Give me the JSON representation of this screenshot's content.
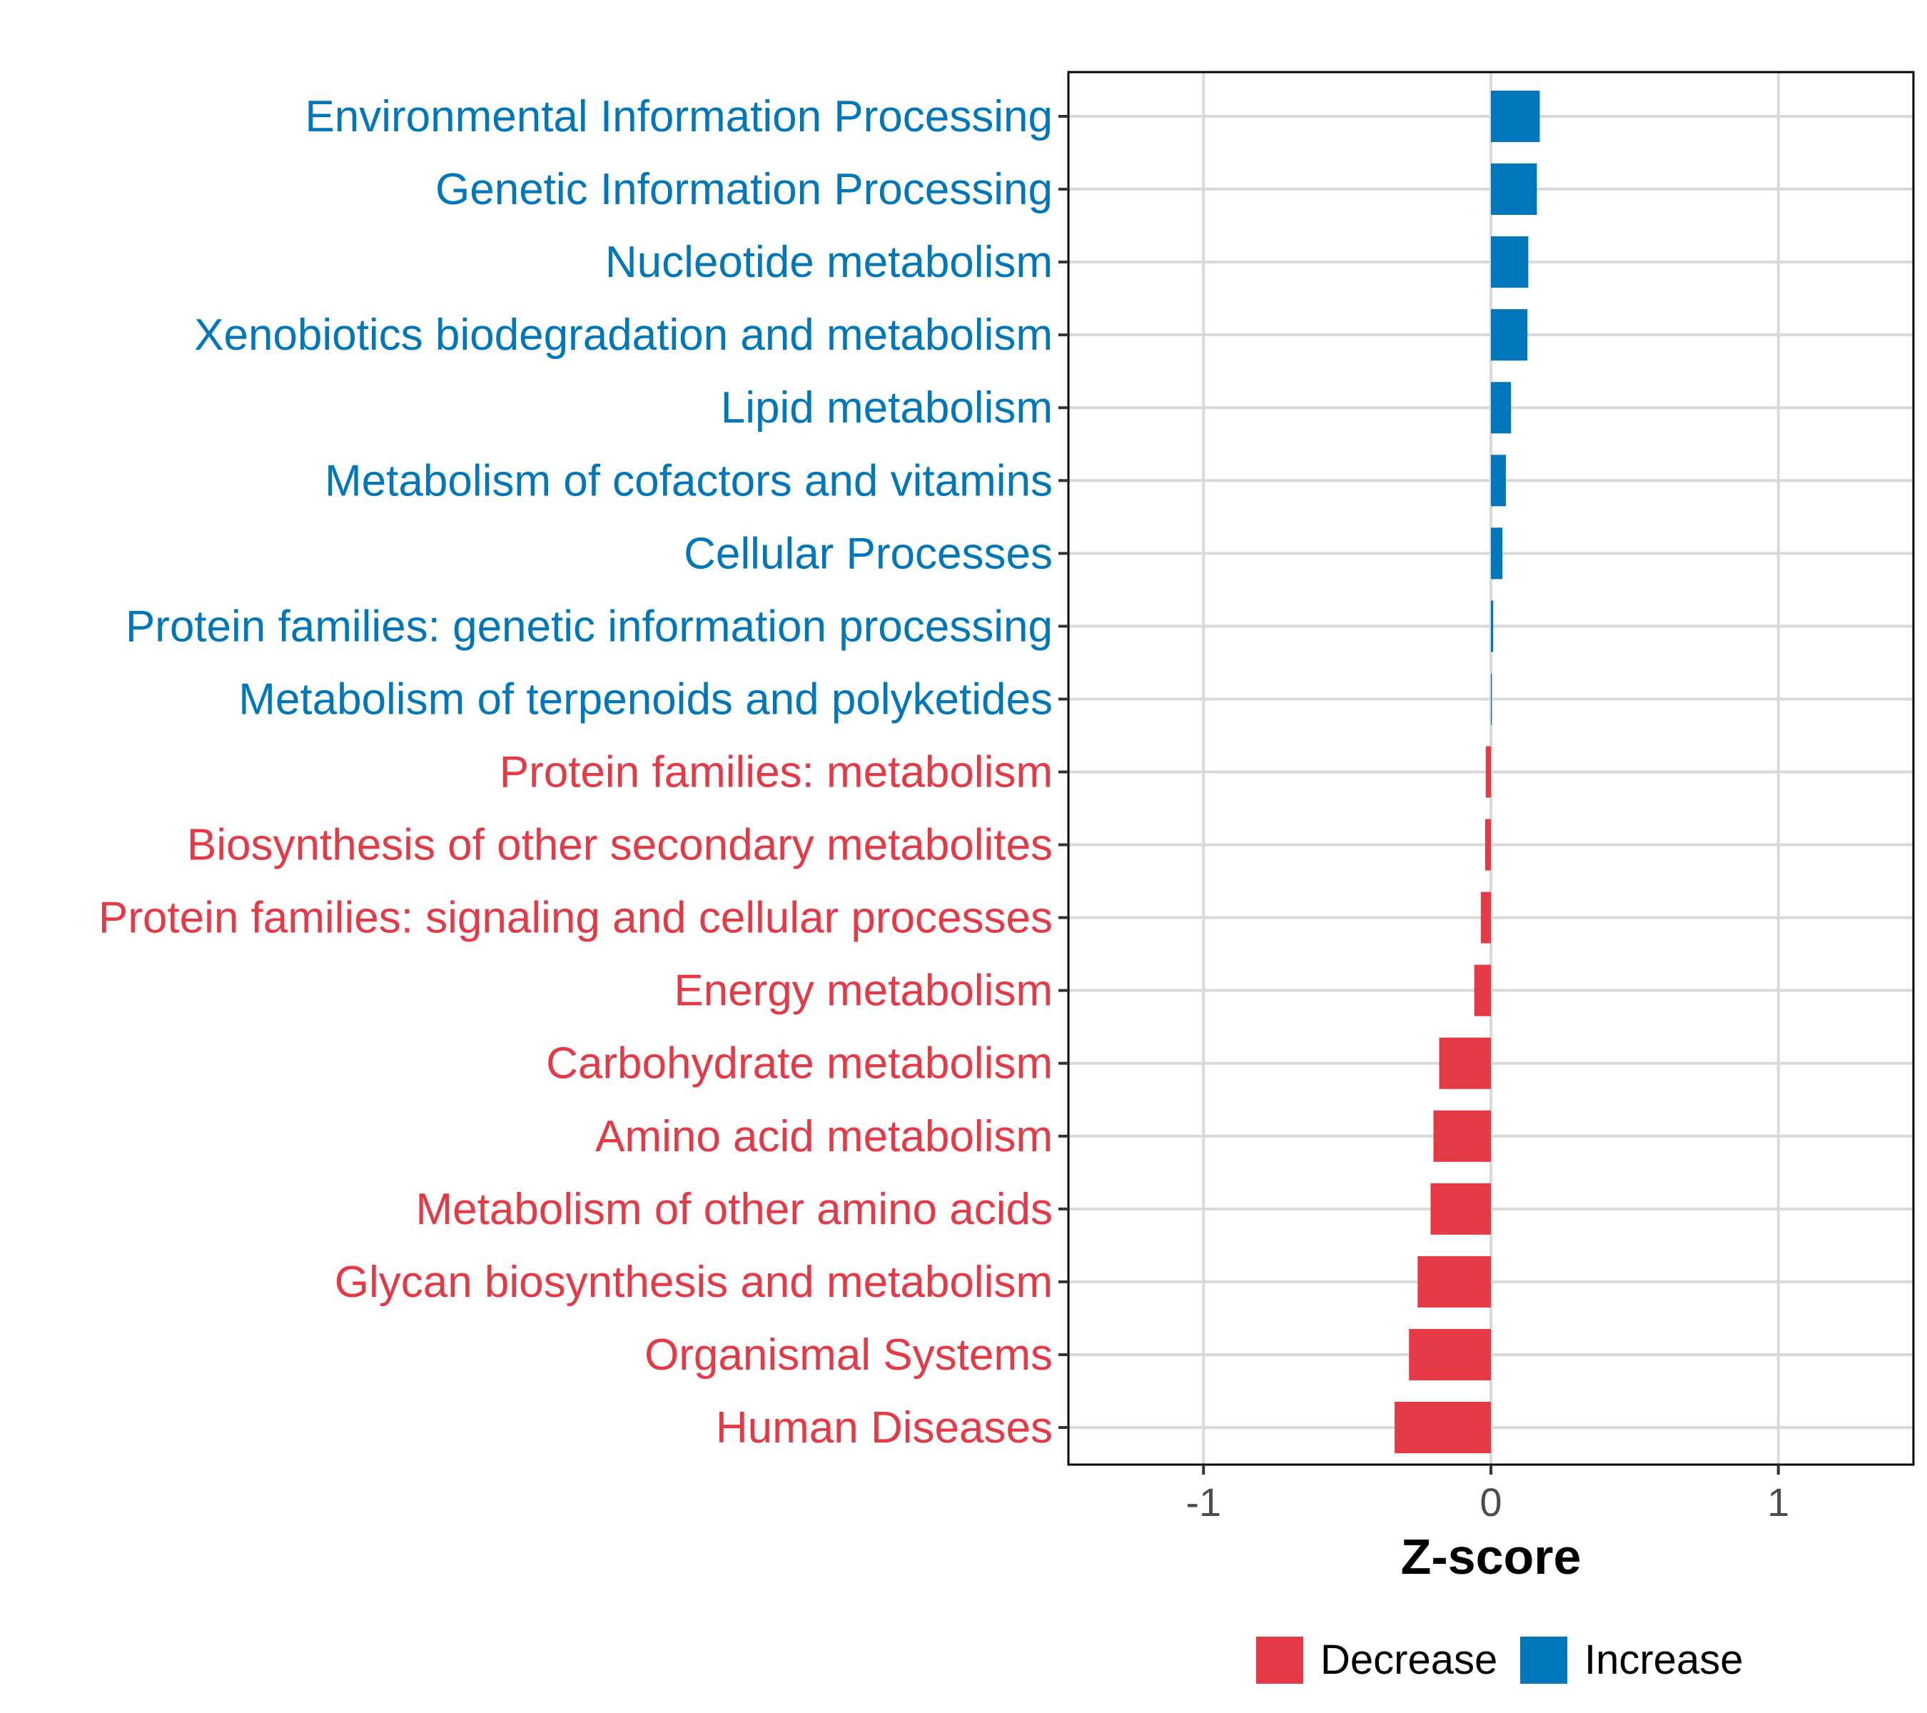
{
  "chart_data": {
    "type": "bar",
    "orientation": "horizontal",
    "xlabel": "Z-score",
    "xlim": [
      -1.47,
      1.47
    ],
    "xticks": [
      -1,
      0,
      1
    ],
    "xtick_labels": [
      "-1",
      "0",
      "1"
    ],
    "grid": true,
    "colors": {
      "Decrease": "#e63946",
      "Increase": "#0077bb"
    },
    "categories": [
      "Environmental Information Processing",
      "Genetic Information Processing",
      "Nucleotide metabolism",
      "Xenobiotics biodegradation and metabolism",
      "Lipid metabolism",
      "Metabolism of cofactors and vitamins",
      "Cellular Processes",
      "Protein families: genetic information processing",
      "Metabolism of terpenoids and polyketides",
      "Protein families: metabolism",
      "Biosynthesis of other secondary metabolites",
      "Protein families: signaling and cellular processes",
      "Energy metabolism",
      "Carbohydrate metabolism",
      "Amino acid metabolism",
      "Metabolism of other amino acids",
      "Glycan biosynthesis and metabolism",
      "Organismal Systems",
      "Human Diseases"
    ],
    "values": [
      0.17,
      0.16,
      0.13,
      0.127,
      0.07,
      0.052,
      0.04,
      0.008,
      0.003,
      -0.018,
      -0.02,
      -0.035,
      -0.058,
      -0.18,
      -0.2,
      -0.21,
      -0.255,
      -0.285,
      -0.335
    ],
    "legend": {
      "position": "bottom",
      "entries": [
        {
          "label": "Decrease",
          "color": "#e63946"
        },
        {
          "label": "Increase",
          "color": "#0077bb"
        }
      ]
    }
  }
}
